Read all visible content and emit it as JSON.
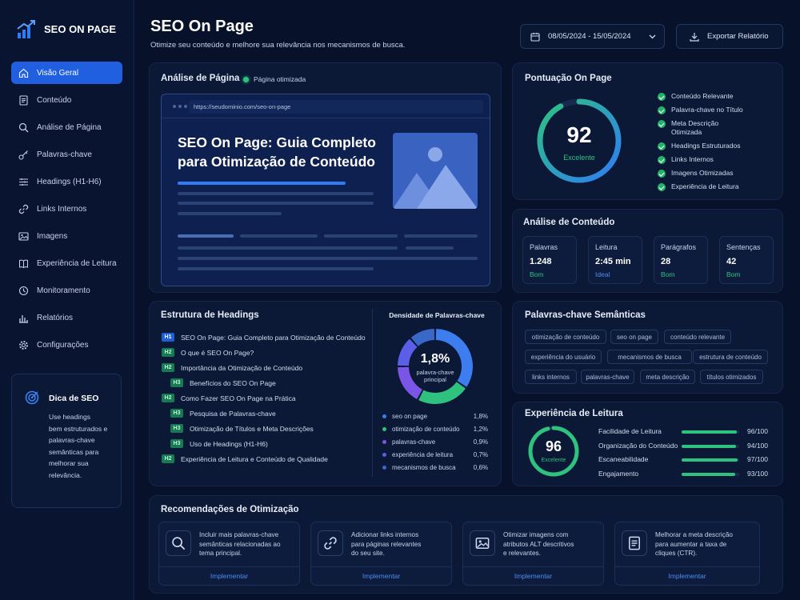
{
  "brand": {
    "name": "SEO ON PAGE"
  },
  "nav": [
    {
      "label": "Visão Geral",
      "icon": "home-icon",
      "active": true
    },
    {
      "label": "Conteúdo",
      "icon": "document-icon"
    },
    {
      "label": "Análise de Página",
      "icon": "search-icon"
    },
    {
      "label": "Palavras-chave",
      "icon": "key-icon"
    },
    {
      "label": "Headings (H1-H6)",
      "icon": "list-icon"
    },
    {
      "label": "Links Internos",
      "icon": "link-icon"
    },
    {
      "label": "Imagens",
      "icon": "image-icon"
    },
    {
      "label": "Experiência de Leitura",
      "icon": "book-icon"
    },
    {
      "label": "Monitoramento",
      "icon": "clock-icon"
    },
    {
      "label": "Relatórios",
      "icon": "bar-chart-icon"
    },
    {
      "label": "Configurações",
      "icon": "gear-icon"
    }
  ],
  "tip": {
    "title": "Dica de SEO",
    "lines": [
      "Use headings",
      "bem estruturados e",
      "palavras-chave",
      "semânticas para",
      "melhorar sua",
      "relevância."
    ]
  },
  "header": {
    "title": "SEO On Page",
    "subtitle": "Otimize seu conteúdo e melhore sua relevância nos mecanismos de busca.",
    "date_range": "08/05/2024 - 15/05/2024",
    "export_label": "Exportar Relatório"
  },
  "page_analysis": {
    "title": "Análise de Página",
    "status": "Página otimizada",
    "url": "https://seudominio.com/seo-on-page",
    "headline_1": "SEO On Page: Guia Completo",
    "headline_2": "para Otimização de Conteúdo"
  },
  "score": {
    "title": "Pontuação On Page",
    "value": "92",
    "value_num": 92,
    "label": "Excelente",
    "checks": [
      "Conteúdo Relevante",
      "Palavra-chave no Título",
      "Meta Descrição",
      "Otimizada",
      "Headings Estruturados",
      "Links Internos",
      "Imagens Otimizadas",
      "Experiência de Leitura"
    ]
  },
  "content_analysis": {
    "title": "Análise de Conteúdo",
    "metrics": [
      {
        "label": "Palavras",
        "value": "1.248",
        "status": "Bom",
        "color": "#2ec27e"
      },
      {
        "label": "Leitura",
        "value": "2:45 min",
        "status": "Ideal",
        "color": "#4d8cf5"
      },
      {
        "label": "Parágrafos",
        "value": "28",
        "status": "Bom",
        "color": "#2ec27e"
      },
      {
        "label": "Sentenças",
        "value": "42",
        "status": "Bom",
        "color": "#2ec27e"
      }
    ]
  },
  "headings": {
    "title": "Estrutura de Headings",
    "items": [
      {
        "tag": "H1",
        "text": "SEO On Page: Guia Completo para Otimização de Conteúdo"
      },
      {
        "tag": "H2",
        "text": "O que é SEO On Page?"
      },
      {
        "tag": "H2",
        "text": "Importância da Otimização de Conteúdo"
      },
      {
        "tag": "H3",
        "text": "Benefícios do SEO On Page"
      },
      {
        "tag": "H2",
        "text": "Como Fazer SEO On Page na Prática"
      },
      {
        "tag": "H3",
        "text": "Pesquisa de Palavras-chave"
      },
      {
        "tag": "H3",
        "text": "Otimização de Títulos e Meta Descrições"
      },
      {
        "tag": "H3",
        "text": "Uso de Headings (H1-H6)"
      },
      {
        "tag": "H2",
        "text": "Experiência de Leitura e Conteúdo de Qualidade"
      }
    ]
  },
  "density": {
    "title": "Densidade de Palavras-chave",
    "center_value": "1,8%",
    "center_label_1": "palavra-chave",
    "center_label_2": "principal",
    "items": [
      {
        "name": "seo on page",
        "pct": "1,8%",
        "value": 1.8,
        "color": "#3d7df0"
      },
      {
        "name": "otimização de conteúdo",
        "pct": "1,2%",
        "value": 1.2,
        "color": "#2ec27e"
      },
      {
        "name": "palavras-chave",
        "pct": "0,9%",
        "value": 0.9,
        "color": "#7a55e6"
      },
      {
        "name": "experiência de leitura",
        "pct": "0,7%",
        "value": 0.7,
        "color": "#5b5fe8"
      },
      {
        "name": "mecanismos de busca",
        "pct": "0,6%",
        "value": 0.6,
        "color": "#3a68c9"
      }
    ]
  },
  "semantic": {
    "title": "Palavras-chave Semânticas",
    "tags": [
      "otimização de conteúdo",
      "seo on page",
      "conteúdo relevante",
      "experiência do usuário",
      "mecanismos de busca",
      "estrutura de conteúdo",
      "links internos",
      "palavras-chave",
      "meta descrição",
      "títulos otimizados"
    ]
  },
  "reading": {
    "title": "Experiência de Leitura",
    "score": "96",
    "score_num": 96,
    "label": "Excelente",
    "items": [
      {
        "name": "Facilidade de Leitura",
        "score": "96/100",
        "value": 96
      },
      {
        "name": "Organização do Conteúdo",
        "score": "94/100",
        "value": 94
      },
      {
        "name": "Escaneabilidade",
        "score": "97/100",
        "value": 97
      },
      {
        "name": "Engajamento",
        "score": "93/100",
        "value": 93
      }
    ]
  },
  "recommendations": {
    "title": "Recomendações de Otimização",
    "action": "Implementar",
    "items": [
      {
        "icon": "search-icon",
        "lines": [
          "Incluir mais palavras-chave",
          "semânticas relacionadas ao",
          "tema principal."
        ]
      },
      {
        "icon": "link-icon",
        "lines": [
          "Adicionar links internos",
          "para páginas relevantes",
          "do seu site."
        ]
      },
      {
        "icon": "image-icon",
        "lines": [
          "Otimizar imagens com",
          "atributos ALT descritivos",
          "e relevantes."
        ]
      },
      {
        "icon": "document-icon",
        "lines": [
          "Melhorar a meta descrição",
          "para aumentar a taxa de",
          "cliques (CTR)."
        ]
      }
    ]
  },
  "colors": {
    "accent": "#1f5fe0",
    "green": "#2ec27e",
    "background": "#07112a",
    "card": "#0b1836"
  }
}
